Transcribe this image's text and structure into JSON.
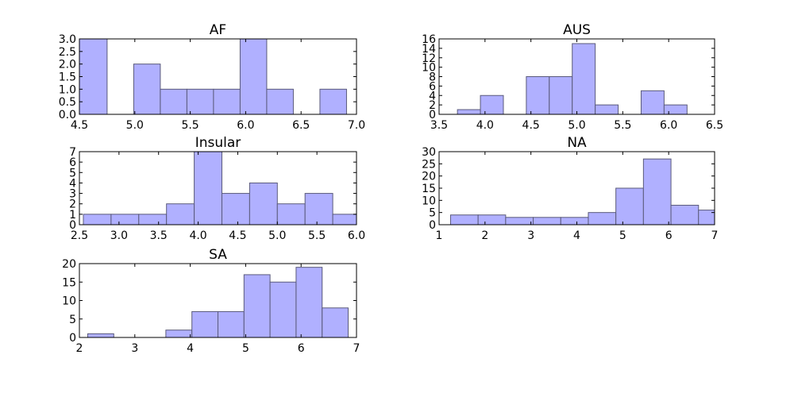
{
  "chart_data": [
    {
      "type": "bar",
      "title": "AF",
      "xlim": [
        4.5,
        7.0
      ],
      "ylim": [
        0,
        3.0
      ],
      "xticks": [
        "4.5",
        "5.0",
        "5.5",
        "6.0",
        "6.5",
        "7.0"
      ],
      "yticks": [
        "0.0",
        "0.5",
        "1.0",
        "1.5",
        "2.0",
        "2.5",
        "3.0"
      ],
      "bins": [
        {
          "x0": 4.45,
          "x1": 4.75,
          "count": 3
        },
        {
          "x0": 4.99,
          "x1": 5.23,
          "count": 2
        },
        {
          "x0": 5.23,
          "x1": 5.47,
          "count": 1
        },
        {
          "x0": 5.47,
          "x1": 5.71,
          "count": 1
        },
        {
          "x0": 5.71,
          "x1": 5.95,
          "count": 1
        },
        {
          "x0": 5.95,
          "x1": 6.19,
          "count": 3
        },
        {
          "x0": 6.19,
          "x1": 6.43,
          "count": 1
        },
        {
          "x0": 6.67,
          "x1": 6.91,
          "count": 1
        }
      ]
    },
    {
      "type": "bar",
      "title": "AUS",
      "xlim": [
        3.5,
        6.5
      ],
      "ylim": [
        0,
        16
      ],
      "xticks": [
        "3.5",
        "4.0",
        "4.5",
        "5.0",
        "5.5",
        "6.0",
        "6.5"
      ],
      "yticks": [
        "0",
        "2",
        "4",
        "6",
        "8",
        "10",
        "12",
        "14",
        "16"
      ],
      "bins": [
        {
          "x0": 3.7,
          "x1": 3.95,
          "count": 1
        },
        {
          "x0": 3.95,
          "x1": 4.2,
          "count": 4
        },
        {
          "x0": 4.45,
          "x1": 4.7,
          "count": 8
        },
        {
          "x0": 4.7,
          "x1": 4.95,
          "count": 8
        },
        {
          "x0": 4.95,
          "x1": 5.2,
          "count": 15
        },
        {
          "x0": 5.2,
          "x1": 5.45,
          "count": 2
        },
        {
          "x0": 5.7,
          "x1": 5.95,
          "count": 5
        },
        {
          "x0": 5.95,
          "x1": 6.2,
          "count": 2
        }
      ]
    },
    {
      "type": "bar",
      "title": "Insular",
      "xlim": [
        2.5,
        6.0
      ],
      "ylim": [
        0,
        7
      ],
      "xticks": [
        "2.5",
        "3.0",
        "3.5",
        "4.0",
        "4.5",
        "5.0",
        "5.5",
        "6.0"
      ],
      "yticks": [
        "0",
        "1",
        "2",
        "3",
        "4",
        "5",
        "6",
        "7"
      ],
      "bins": [
        {
          "x0": 2.55,
          "x1": 2.9,
          "count": 1
        },
        {
          "x0": 2.9,
          "x1": 3.25,
          "count": 1
        },
        {
          "x0": 3.25,
          "x1": 3.6,
          "count": 1
        },
        {
          "x0": 3.6,
          "x1": 3.95,
          "count": 2
        },
        {
          "x0": 3.95,
          "x1": 4.3,
          "count": 7
        },
        {
          "x0": 4.3,
          "x1": 4.65,
          "count": 3
        },
        {
          "x0": 4.65,
          "x1": 5.0,
          "count": 4
        },
        {
          "x0": 5.0,
          "x1": 5.35,
          "count": 2
        },
        {
          "x0": 5.35,
          "x1": 5.7,
          "count": 3
        },
        {
          "x0": 5.7,
          "x1": 6.05,
          "count": 1
        }
      ]
    },
    {
      "type": "bar",
      "title": "NA",
      "xlim": [
        1,
        7
      ],
      "ylim": [
        0,
        30
      ],
      "xticks": [
        "1",
        "2",
        "3",
        "4",
        "5",
        "6",
        "7"
      ],
      "yticks": [
        "0",
        "5",
        "10",
        "15",
        "20",
        "25",
        "30"
      ],
      "bins": [
        {
          "x0": 1.25,
          "x1": 1.85,
          "count": 4
        },
        {
          "x0": 1.85,
          "x1": 2.45,
          "count": 4
        },
        {
          "x0": 2.45,
          "x1": 3.05,
          "count": 3
        },
        {
          "x0": 3.05,
          "x1": 3.65,
          "count": 3
        },
        {
          "x0": 3.65,
          "x1": 4.25,
          "count": 3
        },
        {
          "x0": 4.25,
          "x1": 4.85,
          "count": 5
        },
        {
          "x0": 4.85,
          "x1": 5.45,
          "count": 15
        },
        {
          "x0": 5.45,
          "x1": 6.05,
          "count": 27
        },
        {
          "x0": 6.05,
          "x1": 6.65,
          "count": 8
        },
        {
          "x0": 6.65,
          "x1": 7.25,
          "count": 6
        }
      ]
    },
    {
      "type": "bar",
      "title": "SA",
      "xlim": [
        2,
        7
      ],
      "ylim": [
        0,
        20
      ],
      "xticks": [
        "2",
        "3",
        "4",
        "5",
        "6",
        "7"
      ],
      "yticks": [
        "0",
        "5",
        "10",
        "15",
        "20"
      ],
      "bins": [
        {
          "x0": 2.15,
          "x1": 2.62,
          "count": 1
        },
        {
          "x0": 3.56,
          "x1": 4.03,
          "count": 2
        },
        {
          "x0": 4.03,
          "x1": 4.5,
          "count": 7
        },
        {
          "x0": 4.5,
          "x1": 4.97,
          "count": 7
        },
        {
          "x0": 4.97,
          "x1": 5.44,
          "count": 17
        },
        {
          "x0": 5.44,
          "x1": 5.91,
          "count": 15
        },
        {
          "x0": 5.91,
          "x1": 6.38,
          "count": 19
        },
        {
          "x0": 6.38,
          "x1": 6.85,
          "count": 8
        }
      ]
    }
  ],
  "colors": {
    "bar_fill": "#b0b0ff",
    "bar_edge": "#5a5a7a",
    "axis": "#000000"
  }
}
